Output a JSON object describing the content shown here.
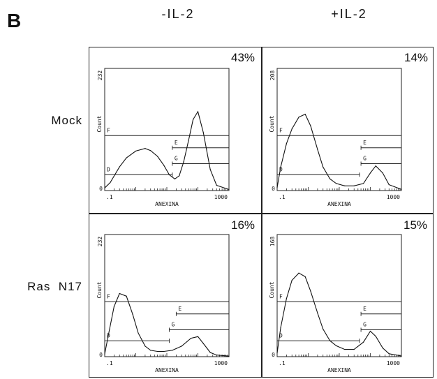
{
  "figure": {
    "panel_letter": "B",
    "column_headers": [
      "-IL-2",
      "+IL-2"
    ],
    "row_headers": [
      "Mock",
      "Ras  N17"
    ]
  },
  "chart_data": [
    {
      "type": "area",
      "panel": "Mock / -IL-2",
      "percent_label": "43%",
      "xlabel": "ANEXINA",
      "ylabel": "Count",
      "xscale": "log",
      "xlim": [
        0.1,
        1000
      ],
      "ylim": [
        0,
        232
      ],
      "x_tick_labels": [
        ".1",
        "1000"
      ],
      "y_tick_labels": [
        "0",
        "232"
      ],
      "gates": [
        {
          "name": "F",
          "from": 0.1,
          "to": 1000
        },
        {
          "name": "E",
          "from": 15,
          "to": 1000
        },
        {
          "name": "G",
          "from": 15,
          "to": 1000
        },
        {
          "name": "D",
          "from": 0.1,
          "to": 15
        }
      ],
      "x": [
        0.1,
        0.15,
        0.3,
        0.5,
        1,
        2,
        3,
        5,
        8,
        12,
        18,
        25,
        35,
        50,
        70,
        100,
        150,
        250,
        400,
        1000
      ],
      "y": [
        5,
        15,
        45,
        62,
        75,
        80,
        76,
        65,
        48,
        30,
        22,
        28,
        55,
        95,
        135,
        150,
        110,
        40,
        10,
        2
      ]
    },
    {
      "type": "area",
      "panel": "Mock / +IL-2",
      "percent_label": "14%",
      "xlabel": "ANEXINA",
      "ylabel": "Count",
      "xscale": "log",
      "xlim": [
        0.1,
        1000
      ],
      "ylim": [
        0,
        208
      ],
      "x_tick_labels": [
        ".1",
        "1000"
      ],
      "y_tick_labels": [
        "0",
        "208"
      ],
      "gates": [
        {
          "name": "F",
          "from": 0.1,
          "to": 1000
        },
        {
          "name": "E",
          "from": 50,
          "to": 1000
        },
        {
          "name": "G",
          "from": 50,
          "to": 1000
        },
        {
          "name": "D",
          "from": 0.1,
          "to": 45
        }
      ],
      "x": [
        0.1,
        0.13,
        0.2,
        0.3,
        0.5,
        0.8,
        1.2,
        2,
        3,
        5,
        8,
        15,
        30,
        60,
        100,
        150,
        250,
        400,
        1000
      ],
      "y": [
        5,
        40,
        80,
        105,
        125,
        130,
        110,
        70,
        40,
        20,
        12,
        8,
        8,
        12,
        30,
        42,
        30,
        10,
        2
      ]
    },
    {
      "type": "area",
      "panel": "Ras N17 / -IL-2",
      "percent_label": "16%",
      "xlabel": "ANEXINA",
      "ylabel": "Count",
      "xscale": "log",
      "xlim": [
        0.1,
        1000
      ],
      "ylim": [
        0,
        232
      ],
      "x_tick_labels": [
        ".1",
        "1000"
      ],
      "y_tick_labels": [
        "0",
        "232"
      ],
      "gates": [
        {
          "name": "F",
          "from": 0.1,
          "to": 1000
        },
        {
          "name": "E",
          "from": 20,
          "to": 1000
        },
        {
          "name": "G",
          "from": 12,
          "to": 1000
        },
        {
          "name": "D",
          "from": 0.1,
          "to": 12
        }
      ],
      "x": [
        0.1,
        0.13,
        0.2,
        0.3,
        0.5,
        0.8,
        1.2,
        2,
        3,
        5,
        8,
        15,
        30,
        60,
        100,
        150,
        250,
        400,
        1000
      ],
      "y": [
        5,
        40,
        95,
        120,
        115,
        80,
        45,
        20,
        12,
        10,
        10,
        12,
        20,
        35,
        38,
        25,
        8,
        3,
        1
      ]
    },
    {
      "type": "area",
      "panel": "Ras N17 / +IL-2",
      "percent_label": "15%",
      "xlabel": "ANEXINA",
      "ylabel": "Count",
      "xscale": "log",
      "xlim": [
        0.1,
        1000
      ],
      "ylim": [
        0,
        168
      ],
      "x_tick_labels": [
        ".1",
        "1000"
      ],
      "y_tick_labels": [
        "0",
        "168"
      ],
      "gates": [
        {
          "name": "F",
          "from": 0.1,
          "to": 1000
        },
        {
          "name": "E",
          "from": 50,
          "to": 1000
        },
        {
          "name": "G",
          "from": 50,
          "to": 1000
        },
        {
          "name": "D",
          "from": 0.1,
          "to": 45
        }
      ],
      "x": [
        0.1,
        0.13,
        0.2,
        0.3,
        0.5,
        0.8,
        1.2,
        2,
        3,
        5,
        8,
        15,
        30,
        60,
        100,
        150,
        250,
        400,
        1000
      ],
      "y": [
        5,
        40,
        80,
        105,
        115,
        110,
        90,
        60,
        38,
        22,
        15,
        10,
        10,
        20,
        35,
        28,
        12,
        4,
        1
      ]
    }
  ]
}
